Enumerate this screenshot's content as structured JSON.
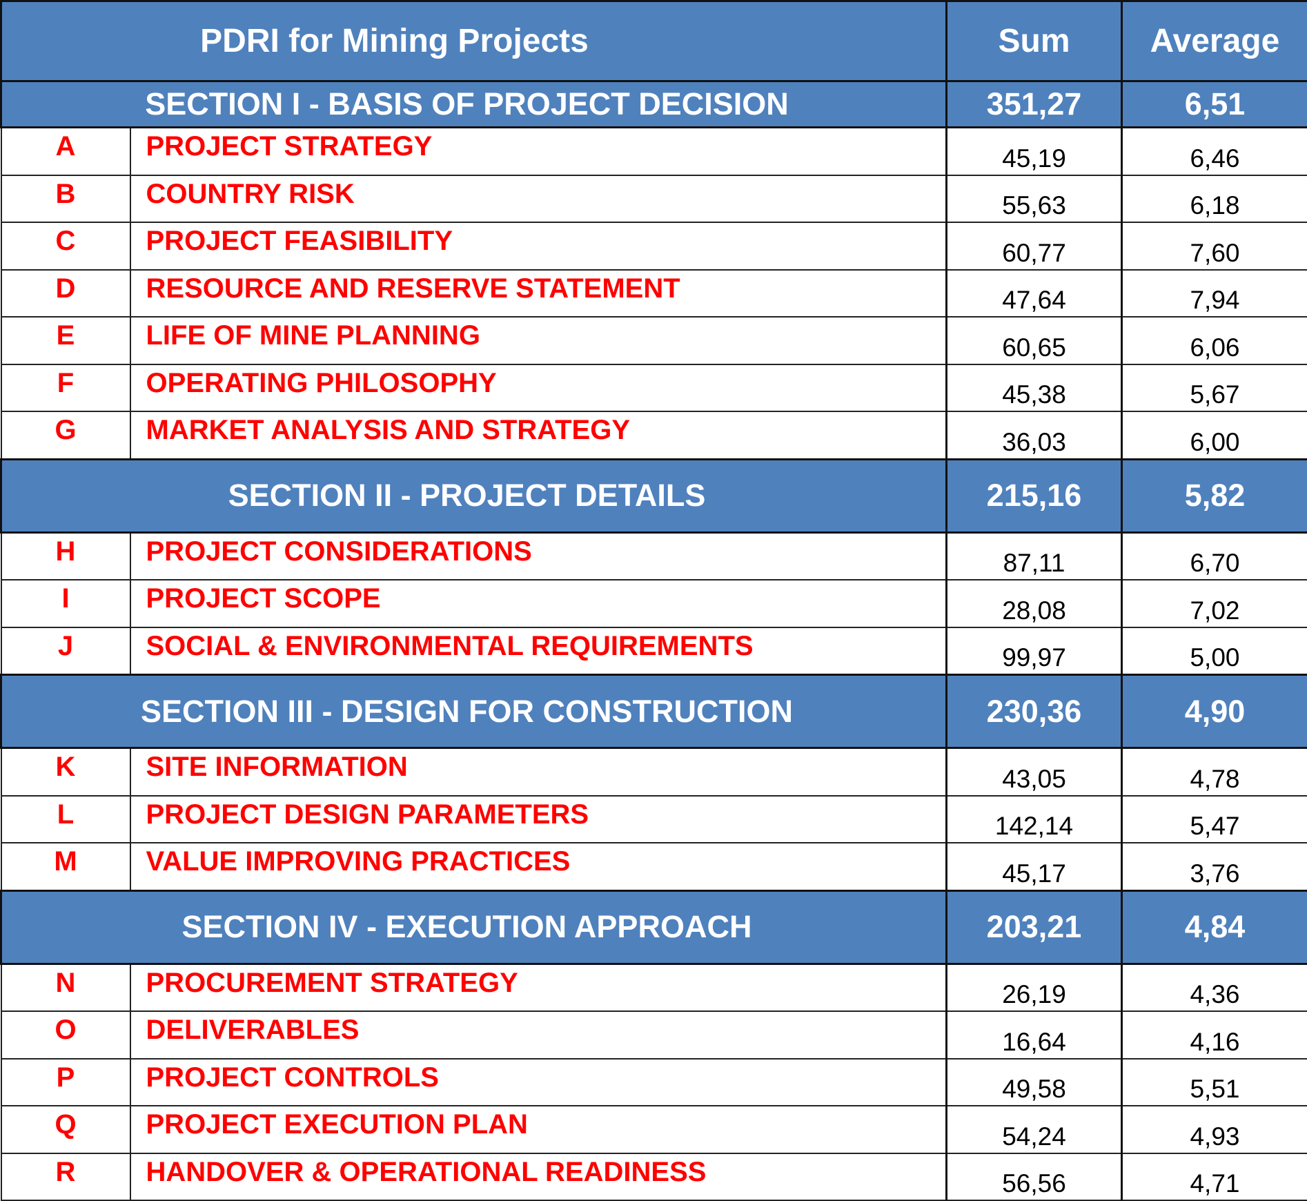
{
  "header": {
    "title": "PDRI for Mining Projects",
    "sum_label": "Sum",
    "avg_label": "Average"
  },
  "sections": [
    {
      "title": "SECTION I - BASIS OF PROJECT DECISION",
      "sum": "351,27",
      "avg": "6,51",
      "items": [
        {
          "code": "A",
          "name": "PROJECT STRATEGY",
          "sum": "45,19",
          "avg": "6,46"
        },
        {
          "code": "B",
          "name": "COUNTRY RISK",
          "sum": "55,63",
          "avg": "6,18"
        },
        {
          "code": "C",
          "name": "PROJECT FEASIBILITY",
          "sum": "60,77",
          "avg": "7,60"
        },
        {
          "code": "D",
          "name": "RESOURCE AND RESERVE STATEMENT",
          "sum": "47,64",
          "avg": "7,94"
        },
        {
          "code": "E",
          "name": "LIFE OF MINE PLANNING",
          "sum": "60,65",
          "avg": "6,06"
        },
        {
          "code": "F",
          "name": "OPERATING PHILOSOPHY",
          "sum": "45,38",
          "avg": "5,67"
        },
        {
          "code": "G",
          "name": "MARKET ANALYSIS AND STRATEGY",
          "sum": "36,03",
          "avg": "6,00"
        }
      ]
    },
    {
      "title": "SECTION II - PROJECT DETAILS",
      "sum": "215,16",
      "avg": "5,82",
      "items": [
        {
          "code": "H",
          "name": "PROJECT CONSIDERATIONS",
          "sum": "87,11",
          "avg": "6,70"
        },
        {
          "code": "I",
          "name": "PROJECT SCOPE",
          "sum": "28,08",
          "avg": "7,02"
        },
        {
          "code": "J",
          "name": "SOCIAL & ENVIRONMENTAL REQUIREMENTS",
          "sum": "99,97",
          "avg": "5,00"
        }
      ]
    },
    {
      "title": "SECTION III - DESIGN FOR CONSTRUCTION",
      "sum": "230,36",
      "avg": "4,90",
      "items": [
        {
          "code": "K",
          "name": "SITE INFORMATION",
          "sum": "43,05",
          "avg": "4,78"
        },
        {
          "code": "L",
          "name": "PROJECT DESIGN PARAMETERS",
          "sum": "142,14",
          "avg": "5,47"
        },
        {
          "code": "M",
          "name": "VALUE IMPROVING PRACTICES",
          "sum": "45,17",
          "avg": "3,76"
        }
      ]
    },
    {
      "title": "SECTION IV - EXECUTION APPROACH",
      "sum": "203,21",
      "avg": "4,84",
      "items": [
        {
          "code": "N",
          "name": "PROCUREMENT STRATEGY",
          "sum": "26,19",
          "avg": "4,36"
        },
        {
          "code": "O",
          "name": "DELIVERABLES",
          "sum": "16,64",
          "avg": "4,16"
        },
        {
          "code": "P",
          "name": "PROJECT CONTROLS",
          "sum": "49,58",
          "avg": "5,51"
        },
        {
          "code": "Q",
          "name": "PROJECT EXECUTION PLAN",
          "sum": "54,24",
          "avg": "4,93"
        },
        {
          "code": "R",
          "name": "HANDOVER & OPERATIONAL READINESS",
          "sum": "56,56",
          "avg": "4,71"
        }
      ]
    }
  ],
  "colors": {
    "header_bg": "#4f81bd",
    "header_text": "#ffffff",
    "item_text": "#ff0000",
    "value_text": "#000000"
  }
}
